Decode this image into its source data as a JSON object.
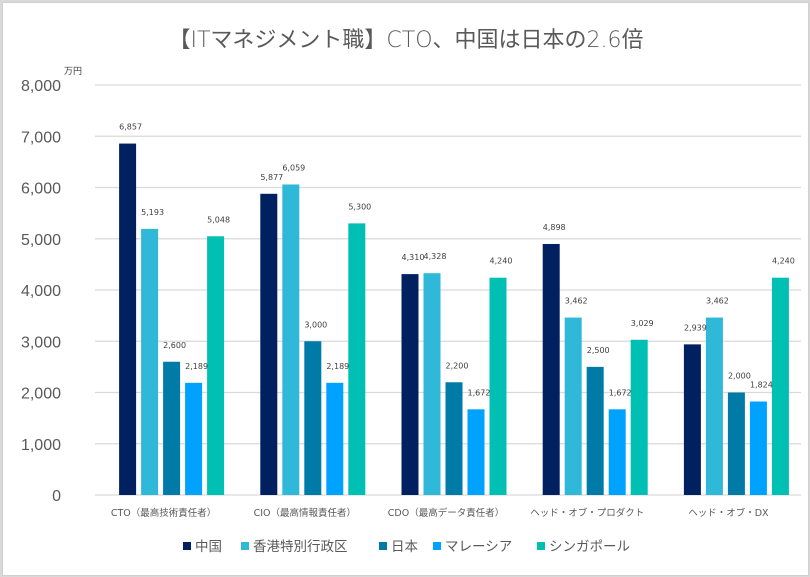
{
  "chart_data": {
    "type": "bar",
    "title": "【ITマネジメント職】CTO、中国は日本の2.6倍",
    "unit_label": "万円",
    "xlabel": "",
    "ylabel": "万円",
    "ylim": [
      0,
      8000
    ],
    "yticks": [
      0,
      1000,
      2000,
      3000,
      4000,
      5000,
      6000,
      7000,
      8000
    ],
    "ytick_labels": [
      "0",
      "1,000",
      "2,000",
      "3,000",
      "4,000",
      "5,000",
      "6,000",
      "7,000",
      "8,000"
    ],
    "grid": true,
    "legend_position": "bottom",
    "categories": [
      "CTO（最高技術責任者）",
      "CIO（最高情報責任者）",
      "CDO（最高データ責任者）",
      "ヘッド・オブ・プロダクト",
      "ヘッド・オブ・DX"
    ],
    "series": [
      {
        "name": "中国",
        "color": "#002060",
        "values": [
          6857,
          5877,
          4310,
          4898,
          2939
        ],
        "labels": [
          "6,857",
          "5,877",
          "4,310",
          "4,898",
          "2,939"
        ]
      },
      {
        "name": "香港特別行政区",
        "color": "#2fb8d8",
        "values": [
          5193,
          6059,
          4328,
          3462,
          3462
        ],
        "labels": [
          "5,193",
          "6,059",
          "4,328",
          "3,462",
          "3,462"
        ]
      },
      {
        "name": "日本",
        "color": "#007ba7",
        "values": [
          2600,
          3000,
          2200,
          2500,
          2000
        ],
        "labels": [
          "2,600",
          "3,000",
          "2,200",
          "2,500",
          "2,000"
        ]
      },
      {
        "name": "マレーシア",
        "color": "#00a2ff",
        "values": [
          2189,
          2189,
          1672,
          1672,
          1824
        ],
        "labels": [
          "2,189",
          "2,189",
          "1,672",
          "1,672",
          "1,824"
        ]
      },
      {
        "name": "シンガポール",
        "color": "#00bfb3",
        "values": [
          5048,
          5300,
          4240,
          3029,
          4240
        ],
        "labels": [
          "5,048",
          "5,300",
          "4,240",
          "3,029",
          "4,240"
        ]
      }
    ]
  }
}
